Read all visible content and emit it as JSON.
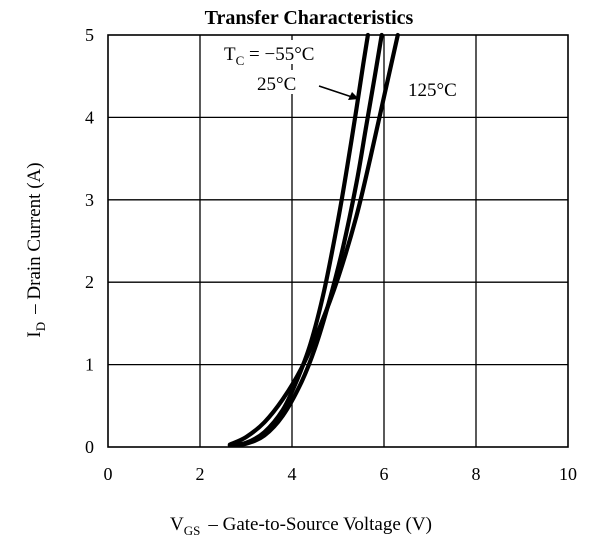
{
  "chart_data": {
    "type": "line",
    "title": "Transfer Characteristics",
    "xlabel": {
      "symbol": "V",
      "sub": "GS",
      "text": "–  Gate-to-Source Voltage (V)"
    },
    "ylabel": {
      "symbol": "I",
      "sub": "D",
      "text": "–  Drain Current (A)"
    },
    "xlim": [
      0,
      10
    ],
    "ylim": [
      0,
      5
    ],
    "xticks": [
      "0",
      "2",
      "4",
      "6",
      "8",
      "10"
    ],
    "yticks": [
      "0",
      "1",
      "2",
      "3",
      "4",
      "5"
    ],
    "grid": true,
    "series": [
      {
        "name": "TC = −55°C",
        "x": [
          2.65,
          3.0,
          3.4,
          3.8,
          4.1,
          4.4,
          4.7,
          5.0,
          5.2,
          5.4,
          5.55,
          5.65
        ],
        "y": [
          0.02,
          0.05,
          0.18,
          0.45,
          0.8,
          1.25,
          1.9,
          2.75,
          3.4,
          4.1,
          4.65,
          5.0
        ]
      },
      {
        "name": "25°C",
        "x": [
          2.65,
          3.0,
          3.4,
          3.8,
          4.2,
          4.5,
          4.8,
          5.1,
          5.4,
          5.6,
          5.8,
          5.95
        ],
        "y": [
          0.02,
          0.04,
          0.14,
          0.38,
          0.78,
          1.2,
          1.75,
          2.4,
          3.2,
          3.85,
          4.5,
          5.0
        ]
      },
      {
        "name": "125°C",
        "x": [
          2.65,
          3.0,
          3.4,
          3.8,
          4.2,
          4.6,
          5.0,
          5.4,
          5.7,
          6.0,
          6.3
        ],
        "y": [
          0.03,
          0.12,
          0.3,
          0.58,
          0.95,
          1.45,
          2.05,
          2.8,
          3.5,
          4.25,
          5.0
        ]
      }
    ],
    "annotations": [
      {
        "symbol": "T",
        "sub": "C",
        "text": " = −55°C"
      },
      {
        "text": "25°C"
      },
      {
        "text": "125°C"
      }
    ],
    "colors": {
      "line": "#000000",
      "background": "#ffffff"
    }
  }
}
